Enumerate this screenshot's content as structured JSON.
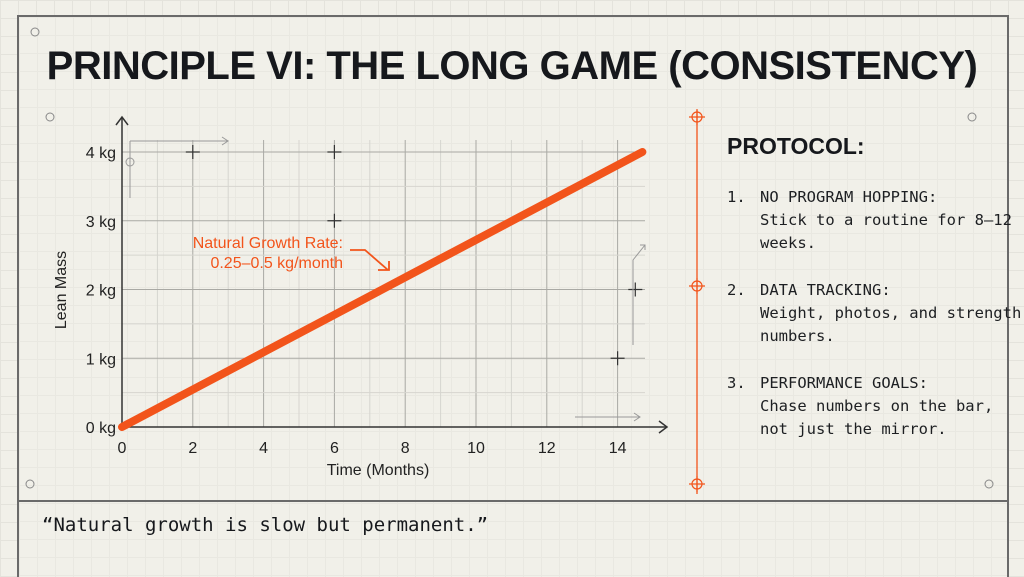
{
  "title": "PRINCIPLE VI: THE LONG GAME (CONSISTENCY)",
  "protocol": {
    "heading": "PROTOCOL:",
    "items": [
      {
        "number": "1.",
        "head": "NO PROGRAM HOPPING:",
        "body": "Stick to a routine for 8–12 weeks."
      },
      {
        "number": "2.",
        "head": "DATA TRACKING:",
        "body": "Weight, photos, and strength numbers."
      },
      {
        "number": "3.",
        "head": "PERFORMANCE GOALS:",
        "body": "Chase numbers on the bar, not just the mirror."
      }
    ]
  },
  "quote": "“Natural growth is slow but permanent.”",
  "colors": {
    "accent": "#f2541b",
    "ink": "#16181c",
    "background": "#f1f0e9"
  },
  "chart_data": {
    "type": "line",
    "xlabel": "Time (Months)",
    "ylabel": "Lean Mass",
    "xlim": [
      0,
      14.7
    ],
    "ylim": [
      0,
      4
    ],
    "x_ticks": [
      "0",
      "2",
      "4",
      "6",
      "8",
      "10",
      "12",
      "14"
    ],
    "y_ticks": [
      "0 kg",
      "1 kg",
      "2 kg",
      "3 kg",
      "4 kg"
    ],
    "grid": true,
    "series": [
      {
        "x": [
          0,
          14.7
        ],
        "y": [
          0,
          4
        ],
        "color": "#f2541b"
      }
    ],
    "annotation": {
      "line1": "Natural Growth Rate:",
      "line2": "0.25–0.5 kg/month",
      "points_to": [
        7.6,
        2.1
      ]
    }
  }
}
